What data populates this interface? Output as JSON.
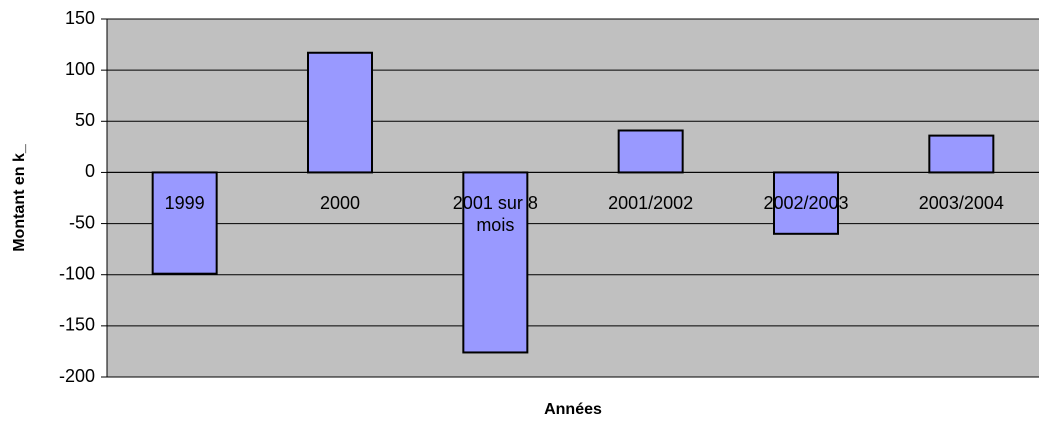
{
  "chart_data": {
    "type": "bar",
    "categories": [
      "1999",
      "2000",
      "2001 sur 8 mois",
      "2001/2002",
      "2002/2003",
      "2003/2004"
    ],
    "values": [
      -99,
      117,
      -176,
      41,
      -60,
      36
    ],
    "color": "#9999ff",
    "ylim": [
      -200,
      150
    ],
    "yticks": [
      -200,
      -150,
      -100,
      -50,
      0,
      50,
      100,
      150
    ],
    "grid": true,
    "xlabel": "Années",
    "ylabel": "Montant en k_"
  }
}
